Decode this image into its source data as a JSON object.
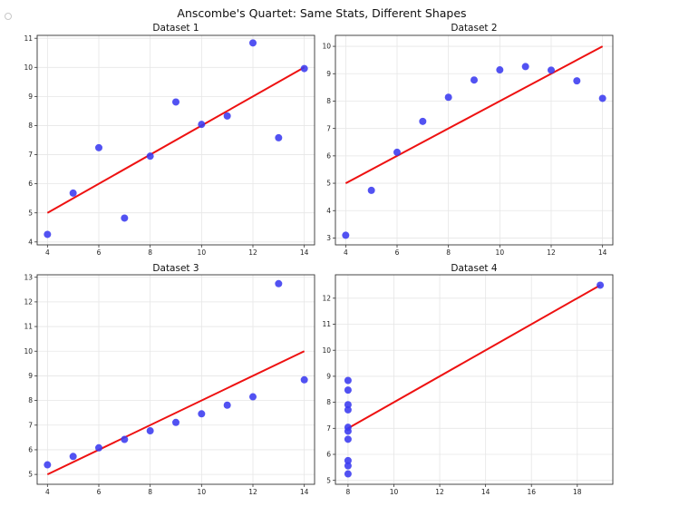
{
  "title": "Anscombe's Quartet: Same Stats, Different Shapes",
  "colors": {
    "points": "#3a3af0",
    "fit_line": "#ee1111"
  },
  "chart_data": [
    {
      "type": "scatter",
      "title": "Dataset 1",
      "x": [
        10,
        8,
        13,
        9,
        11,
        14,
        6,
        4,
        12,
        7,
        5
      ],
      "y": [
        8.04,
        6.95,
        7.58,
        8.81,
        8.33,
        9.96,
        7.24,
        4.26,
        10.84,
        4.82,
        5.68
      ],
      "fit": {
        "slope": 0.5,
        "intercept": 3.0,
        "x_range": [
          4,
          14
        ]
      },
      "xlim": [
        3.6,
        14.4
      ],
      "ylim": [
        3.9,
        11.1
      ],
      "xticks": [
        4,
        6,
        8,
        10,
        12,
        14
      ],
      "yticks": [
        4,
        5,
        6,
        7,
        8,
        9,
        10,
        11
      ],
      "grid": true
    },
    {
      "type": "scatter",
      "title": "Dataset 2",
      "x": [
        10,
        8,
        13,
        9,
        11,
        14,
        6,
        4,
        12,
        7,
        5
      ],
      "y": [
        9.14,
        8.14,
        8.74,
        8.77,
        9.26,
        8.1,
        6.13,
        3.1,
        9.13,
        7.26,
        4.74
      ],
      "fit": {
        "slope": 0.5,
        "intercept": 3.0,
        "x_range": [
          4,
          14
        ]
      },
      "xlim": [
        3.6,
        14.4
      ],
      "ylim": [
        2.75,
        10.4
      ],
      "xticks": [
        4,
        6,
        8,
        10,
        12,
        14
      ],
      "yticks": [
        3,
        4,
        5,
        6,
        7,
        8,
        9,
        10
      ],
      "grid": true
    },
    {
      "type": "scatter",
      "title": "Dataset 3",
      "x": [
        10,
        8,
        13,
        9,
        11,
        14,
        6,
        4,
        12,
        7,
        5
      ],
      "y": [
        7.46,
        6.77,
        12.74,
        7.11,
        7.81,
        8.84,
        6.08,
        5.39,
        8.15,
        6.42,
        5.73
      ],
      "fit": {
        "slope": 0.5,
        "intercept": 3.0,
        "x_range": [
          4,
          14
        ]
      },
      "xlim": [
        3.6,
        14.4
      ],
      "ylim": [
        4.6,
        13.1
      ],
      "xticks": [
        4,
        6,
        8,
        10,
        12,
        14
      ],
      "yticks": [
        5,
        6,
        7,
        8,
        9,
        10,
        11,
        12,
        13
      ],
      "grid": true
    },
    {
      "type": "scatter",
      "title": "Dataset 4",
      "x": [
        8,
        8,
        8,
        8,
        8,
        8,
        8,
        19,
        8,
        8,
        8
      ],
      "y": [
        6.58,
        5.76,
        7.71,
        8.84,
        8.47,
        7.04,
        5.25,
        12.5,
        5.56,
        7.91,
        6.89
      ],
      "fit": {
        "slope": 0.5,
        "intercept": 3.0,
        "x_range": [
          8,
          19
        ]
      },
      "xlim": [
        7.45,
        19.55
      ],
      "ylim": [
        4.85,
        12.9
      ],
      "xticks": [
        8,
        10,
        12,
        14,
        16,
        18
      ],
      "yticks": [
        5,
        6,
        7,
        8,
        9,
        10,
        11,
        12
      ],
      "grid": true
    }
  ]
}
